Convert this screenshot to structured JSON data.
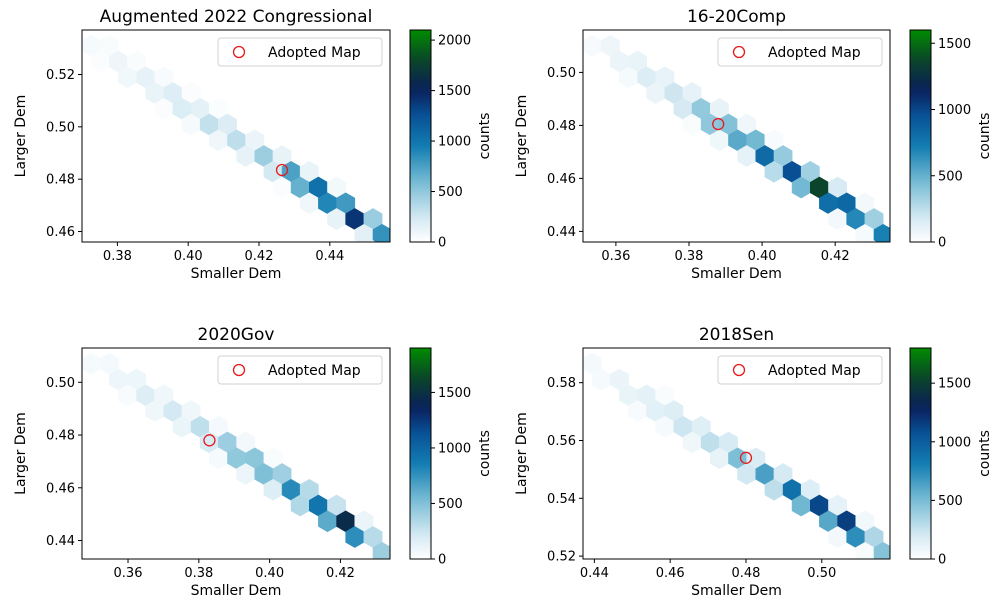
{
  "chart_data": [
    {
      "type": "hexbin",
      "title": "Augmented 2022 Congressional",
      "xlabel": "Smaller Dem",
      "ylabel": "Larger Dem",
      "xlim": [
        0.37,
        0.457
      ],
      "ylim": [
        0.456,
        0.537
      ],
      "xticks": [
        0.38,
        0.4,
        0.42,
        0.44
      ],
      "xtick_labels": [
        "0.38",
        "0.40",
        "0.42",
        "0.44"
      ],
      "yticks": [
        0.46,
        0.48,
        0.5,
        0.52
      ],
      "ytick_labels": [
        "0.46",
        "0.48",
        "0.50",
        "0.52"
      ],
      "legend": {
        "label": "Adopted Map",
        "location": "upper right"
      },
      "adopted_map": {
        "x": 0.4265,
        "y": 0.4835
      },
      "colorbar": {
        "label": "counts",
        "vmax": 2100,
        "ticks": [
          0,
          500,
          1000,
          1500,
          2000
        ],
        "tick_labels": [
          "0",
          "500",
          "1000",
          "1500",
          "2000"
        ]
      },
      "trend": {
        "x0": 0.374,
        "y0": 0.53,
        "x1": 0.455,
        "y1": 0.459
      },
      "peaks": [
        {
          "t": 0.0,
          "count": 60
        },
        {
          "t": 0.1,
          "count": 110
        },
        {
          "t": 0.2,
          "count": 200
        },
        {
          "t": 0.35,
          "count": 260
        },
        {
          "t": 0.42,
          "count": 420
        },
        {
          "t": 0.5,
          "count": 320
        },
        {
          "t": 0.6,
          "count": 520
        },
        {
          "t": 0.68,
          "count": 820
        },
        {
          "t": 0.72,
          "count": 1150
        },
        {
          "t": 0.8,
          "count": 1450
        },
        {
          "t": 0.86,
          "count": 1300
        },
        {
          "t": 0.9,
          "count": 2000
        },
        {
          "t": 0.95,
          "count": 1100
        },
        {
          "t": 1.0,
          "count": 950
        }
      ]
    },
    {
      "type": "hexbin",
      "title": "16-20Comp",
      "xlabel": "Smaller Dem",
      "ylabel": "Larger Dem",
      "xlim": [
        0.351,
        0.435
      ],
      "ylim": [
        0.436,
        0.516
      ],
      "xticks": [
        0.36,
        0.38,
        0.4,
        0.42
      ],
      "xtick_labels": [
        "0.36",
        "0.38",
        "0.40",
        "0.42"
      ],
      "yticks": [
        0.44,
        0.46,
        0.48,
        0.5
      ],
      "ytick_labels": [
        "0.44",
        "0.46",
        "0.48",
        "0.50"
      ],
      "legend": {
        "label": "Adopted Map",
        "location": "upper right"
      },
      "adopted_map": {
        "x": 0.388,
        "y": 0.4805
      },
      "colorbar": {
        "label": "counts",
        "vmax": 1600,
        "ticks": [
          0,
          500,
          1000,
          1500
        ],
        "tick_labels": [
          "0",
          "500",
          "1000",
          "1500"
        ]
      },
      "trend": {
        "x0": 0.354,
        "y0": 0.512,
        "x1": 0.434,
        "y1": 0.439
      },
      "peaks": [
        {
          "t": 0.0,
          "count": 60
        },
        {
          "t": 0.15,
          "count": 150
        },
        {
          "t": 0.3,
          "count": 280
        },
        {
          "t": 0.45,
          "count": 650
        },
        {
          "t": 0.52,
          "count": 700
        },
        {
          "t": 0.6,
          "count": 900
        },
        {
          "t": 0.66,
          "count": 1050
        },
        {
          "t": 0.72,
          "count": 1300
        },
        {
          "t": 0.77,
          "count": 1500
        },
        {
          "t": 0.82,
          "count": 1400
        },
        {
          "t": 0.88,
          "count": 1250
        },
        {
          "t": 0.94,
          "count": 600
        },
        {
          "t": 1.0,
          "count": 800
        }
      ]
    },
    {
      "type": "hexbin",
      "title": "2020Gov",
      "xlabel": "Smaller Dem",
      "ylabel": "Larger Dem",
      "xlim": [
        0.347,
        0.434
      ],
      "ylim": [
        0.433,
        0.513
      ],
      "xticks": [
        0.36,
        0.38,
        0.4,
        0.42
      ],
      "xtick_labels": [
        "0.36",
        "0.38",
        "0.40",
        "0.42"
      ],
      "yticks": [
        0.44,
        0.46,
        0.48,
        0.5
      ],
      "ytick_labels": [
        "0.44",
        "0.46",
        "0.48",
        "0.50"
      ],
      "legend": {
        "label": "Adopted Map",
        "location": "upper right"
      },
      "adopted_map": {
        "x": 0.383,
        "y": 0.478
      },
      "colorbar": {
        "label": "counts",
        "vmax": 1900,
        "ticks": [
          0,
          500,
          1000,
          1500
        ],
        "tick_labels": [
          "0",
          "500",
          "1000",
          "1500"
        ]
      },
      "trend": {
        "x0": 0.35,
        "y0": 0.509,
        "x1": 0.433,
        "y1": 0.436
      },
      "peaks": [
        {
          "t": 0.0,
          "count": 60
        },
        {
          "t": 0.15,
          "count": 150
        },
        {
          "t": 0.3,
          "count": 250
        },
        {
          "t": 0.42,
          "count": 350
        },
        {
          "t": 0.5,
          "count": 700
        },
        {
          "t": 0.58,
          "count": 650
        },
        {
          "t": 0.66,
          "count": 850
        },
        {
          "t": 0.74,
          "count": 1100
        },
        {
          "t": 0.8,
          "count": 1350
        },
        {
          "t": 0.86,
          "count": 1750
        },
        {
          "t": 0.9,
          "count": 1300
        },
        {
          "t": 0.96,
          "count": 300
        },
        {
          "t": 1.0,
          "count": 650
        }
      ]
    },
    {
      "type": "hexbin",
      "title": "2018Sen",
      "xlabel": "Smaller Dem",
      "ylabel": "Larger Dem",
      "xlim": [
        0.437,
        0.518
      ],
      "ylim": [
        0.519,
        0.592
      ],
      "xticks": [
        0.44,
        0.46,
        0.48,
        0.5
      ],
      "xtick_labels": [
        "0.44",
        "0.46",
        "0.48",
        "0.50"
      ],
      "yticks": [
        0.52,
        0.54,
        0.56,
        0.58
      ],
      "ytick_labels": [
        "0.52",
        "0.54",
        "0.56",
        "0.58"
      ],
      "legend": {
        "label": "Adopted Map",
        "location": "upper right"
      },
      "adopted_map": {
        "x": 0.48,
        "y": 0.554
      },
      "colorbar": {
        "label": "counts",
        "vmax": 1800,
        "ticks": [
          0,
          500,
          1000,
          1500
        ],
        "tick_labels": [
          "0",
          "500",
          "1000",
          "1500"
        ]
      },
      "trend": {
        "x0": 0.44,
        "y0": 0.585,
        "x1": 0.517,
        "y1": 0.522
      },
      "peaks": [
        {
          "t": 0.0,
          "count": 60
        },
        {
          "t": 0.15,
          "count": 160
        },
        {
          "t": 0.3,
          "count": 250
        },
        {
          "t": 0.42,
          "count": 350
        },
        {
          "t": 0.52,
          "count": 550
        },
        {
          "t": 0.6,
          "count": 750
        },
        {
          "t": 0.66,
          "count": 850
        },
        {
          "t": 0.72,
          "count": 1100
        },
        {
          "t": 0.78,
          "count": 1350
        },
        {
          "t": 0.84,
          "count": 1200
        },
        {
          "t": 0.88,
          "count": 1750
        },
        {
          "t": 0.94,
          "count": 450
        },
        {
          "t": 1.0,
          "count": 700
        }
      ]
    }
  ]
}
